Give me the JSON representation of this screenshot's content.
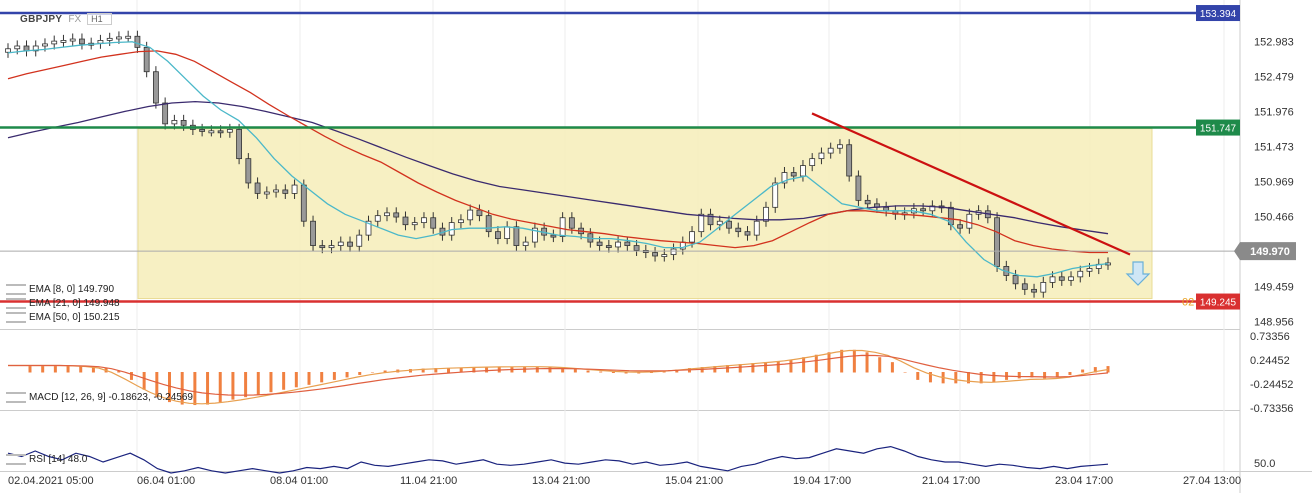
{
  "header": {
    "symbol": "GBPJPY",
    "market": "FX",
    "timeframe": "H1"
  },
  "colors": {
    "ema8": "#4bb8c9",
    "ema21": "#d2321e",
    "ema50": "#3a2a6e",
    "resistance_top": "#3344aa",
    "resistance_mid": "#1e8a4a",
    "support": "#d93030",
    "trend": "#cc1111",
    "box": "#f7efbd",
    "candle_up": "#ffffff",
    "candle_down": "#999999",
    "macd_line": "#e8a050",
    "signal_line": "#e06040",
    "hist": "#f08040",
    "rsi": "#1a237e",
    "arrow": "#6ab0d8"
  },
  "indicators": {
    "ema8": "EMA [8, 0] 149.790",
    "ema21": "EMA [21, 0] 149.948",
    "ema50": "EMA [50, 0] 150.215",
    "macd": "MACD [12, 26, 9] -0.18623, -0.24569",
    "rsi": "RSI [14] 48.0"
  },
  "level_labels": {
    "top": "153.394",
    "mid": "151.747",
    "last": "149.970",
    "support": "149.245",
    "support_tag": "02"
  },
  "y_ticks": [
    "152.983",
    "152.479",
    "151.976",
    "151.473",
    "150.969",
    "150.466",
    "149.459",
    "148.956"
  ],
  "macd_ticks": [
    "0.73356",
    "0.24452",
    "-0.24452",
    "-0.73356"
  ],
  "rsi_ticks": [
    "50.0"
  ],
  "x_labels": [
    "02.04.2021  05:00",
    "06.04  01:00",
    "08.04  01:00",
    "11.04  21:00",
    "13.04  21:00",
    "15.04  21:00",
    "19.04  17:00",
    "21.04  17:00",
    "23.04  17:00",
    "27.04  13:00"
  ],
  "chart_data": {
    "type": "line",
    "title": "",
    "candles_close": [
      152.88,
      152.92,
      152.85,
      152.92,
      152.95,
      152.99,
      153.0,
      153.02,
      152.95,
      152.96,
      153.0,
      153.03,
      153.05,
      153.06,
      152.9,
      152.55,
      152.1,
      151.8,
      151.85,
      151.78,
      151.72,
      151.7,
      151.7,
      151.68,
      151.72,
      151.3,
      150.95,
      150.8,
      150.82,
      150.85,
      150.8,
      150.92,
      150.4,
      150.05,
      150.02,
      150.05,
      150.1,
      150.04,
      150.2,
      150.4,
      150.48,
      150.52,
      150.46,
      150.35,
      150.38,
      150.45,
      150.3,
      150.2,
      150.38,
      150.42,
      150.56,
      150.48,
      150.25,
      150.15,
      150.32,
      150.05,
      150.1,
      150.3,
      150.2,
      150.18,
      150.45,
      150.3,
      150.22,
      150.1,
      150.05,
      150.03,
      150.1,
      150.05,
      149.98,
      149.95,
      149.9,
      149.92,
      150.0,
      150.1,
      150.25,
      150.5,
      150.35,
      150.4,
      150.3,
      150.25,
      150.2,
      150.4,
      150.6,
      150.95,
      151.1,
      151.05,
      151.2,
      151.3,
      151.38,
      151.45,
      151.5,
      151.05,
      150.7,
      150.65,
      150.6,
      150.55,
      150.5,
      150.52,
      150.58,
      150.55,
      150.62,
      150.6,
      150.35,
      150.3,
      150.5,
      150.55,
      150.45,
      149.75,
      149.62,
      149.5,
      149.42,
      149.38,
      149.52,
      149.6,
      149.55,
      149.6,
      149.68,
      149.72,
      149.78,
      149.8
    ],
    "ema8": [
      152.82,
      152.85,
      152.87,
      152.9,
      152.93,
      152.95,
      152.97,
      152.98,
      152.9,
      152.7,
      152.45,
      152.2,
      152.0,
      151.85,
      151.6,
      151.3,
      151.05,
      150.85,
      150.65,
      150.5,
      150.4,
      150.3,
      150.2,
      150.15,
      150.2,
      150.28,
      150.3,
      150.3,
      150.32,
      150.3,
      150.25,
      150.2,
      150.18,
      150.15,
      150.15,
      150.12,
      150.08,
      150.02,
      150.02,
      150.1,
      150.3,
      150.5,
      150.7,
      150.9,
      151.0,
      151.05,
      150.85,
      150.65,
      150.6,
      150.55,
      150.55,
      150.55,
      150.5,
      150.4,
      150.1,
      149.85,
      149.7,
      149.62,
      149.6,
      149.65,
      149.72,
      149.76,
      149.79
    ],
    "ema21": [
      152.45,
      152.52,
      152.58,
      152.64,
      152.7,
      152.76,
      152.8,
      152.84,
      152.85,
      152.8,
      152.7,
      152.55,
      152.4,
      152.25,
      152.08,
      151.92,
      151.77,
      151.62,
      151.48,
      151.36,
      151.25,
      151.1,
      150.95,
      150.82,
      150.7,
      150.6,
      150.5,
      150.43,
      150.38,
      150.33,
      150.28,
      150.25,
      150.22,
      150.18,
      150.15,
      150.12,
      150.1,
      150.08,
      150.05,
      150.02,
      150.05,
      150.12,
      150.25,
      150.38,
      150.5,
      150.55,
      150.55,
      150.52,
      150.5,
      150.48,
      150.45,
      150.42,
      150.35,
      150.25,
      150.12,
      150.05,
      150.0,
      149.97,
      149.95,
      149.95
    ],
    "ema50": [
      151.6,
      151.68,
      151.75,
      151.82,
      151.9,
      151.98,
      152.05,
      152.1,
      152.12,
      152.1,
      152.05,
      151.98,
      151.9,
      151.82,
      151.7,
      151.58,
      151.45,
      151.32,
      151.2,
      151.08,
      150.98,
      150.9,
      150.85,
      150.8,
      150.75,
      150.7,
      150.65,
      150.6,
      150.55,
      150.5,
      150.47,
      150.44,
      150.42,
      150.42,
      150.44,
      150.5,
      150.56,
      150.6,
      150.62,
      150.62,
      150.6,
      150.55,
      150.5,
      150.45,
      150.38,
      150.32,
      150.27,
      150.22
    ],
    "levels": {
      "top": 153.394,
      "mid": 151.747,
      "support": 149.245,
      "last": 149.97
    },
    "trendline": [
      [
        151.95
      ],
      [
        149.95
      ]
    ],
    "macd_hist": [
      0.12,
      0.12,
      0.12,
      0.12,
      0.12,
      0.1,
      0.08,
      0.02,
      -0.15,
      -0.35,
      -0.5,
      -0.6,
      -0.65,
      -0.66,
      -0.65,
      -0.6,
      -0.55,
      -0.5,
      -0.45,
      -0.4,
      -0.35,
      -0.3,
      -0.25,
      -0.2,
      -0.15,
      -0.1,
      -0.05,
      0.0,
      0.03,
      0.05,
      0.06,
      0.07,
      0.08,
      0.08,
      0.09,
      0.09,
      0.1,
      0.1,
      0.1,
      0.1,
      0.1,
      0.1,
      0.08,
      0.06,
      0.03,
      0.01,
      -0.01,
      -0.02,
      -0.02,
      -0.01,
      0.02,
      0.05,
      0.08,
      0.1,
      0.12,
      0.14,
      0.16,
      0.18,
      0.2,
      0.22,
      0.25,
      0.3,
      0.35,
      0.4,
      0.45,
      0.45,
      0.4,
      0.3,
      0.2,
      0.0,
      -0.15,
      -0.2,
      -0.22,
      -0.22,
      -0.22,
      -0.22,
      -0.2,
      -0.15,
      -0.12,
      -0.1,
      -0.12,
      -0.1,
      -0.05,
      0.05,
      0.1,
      0.12
    ]
  }
}
